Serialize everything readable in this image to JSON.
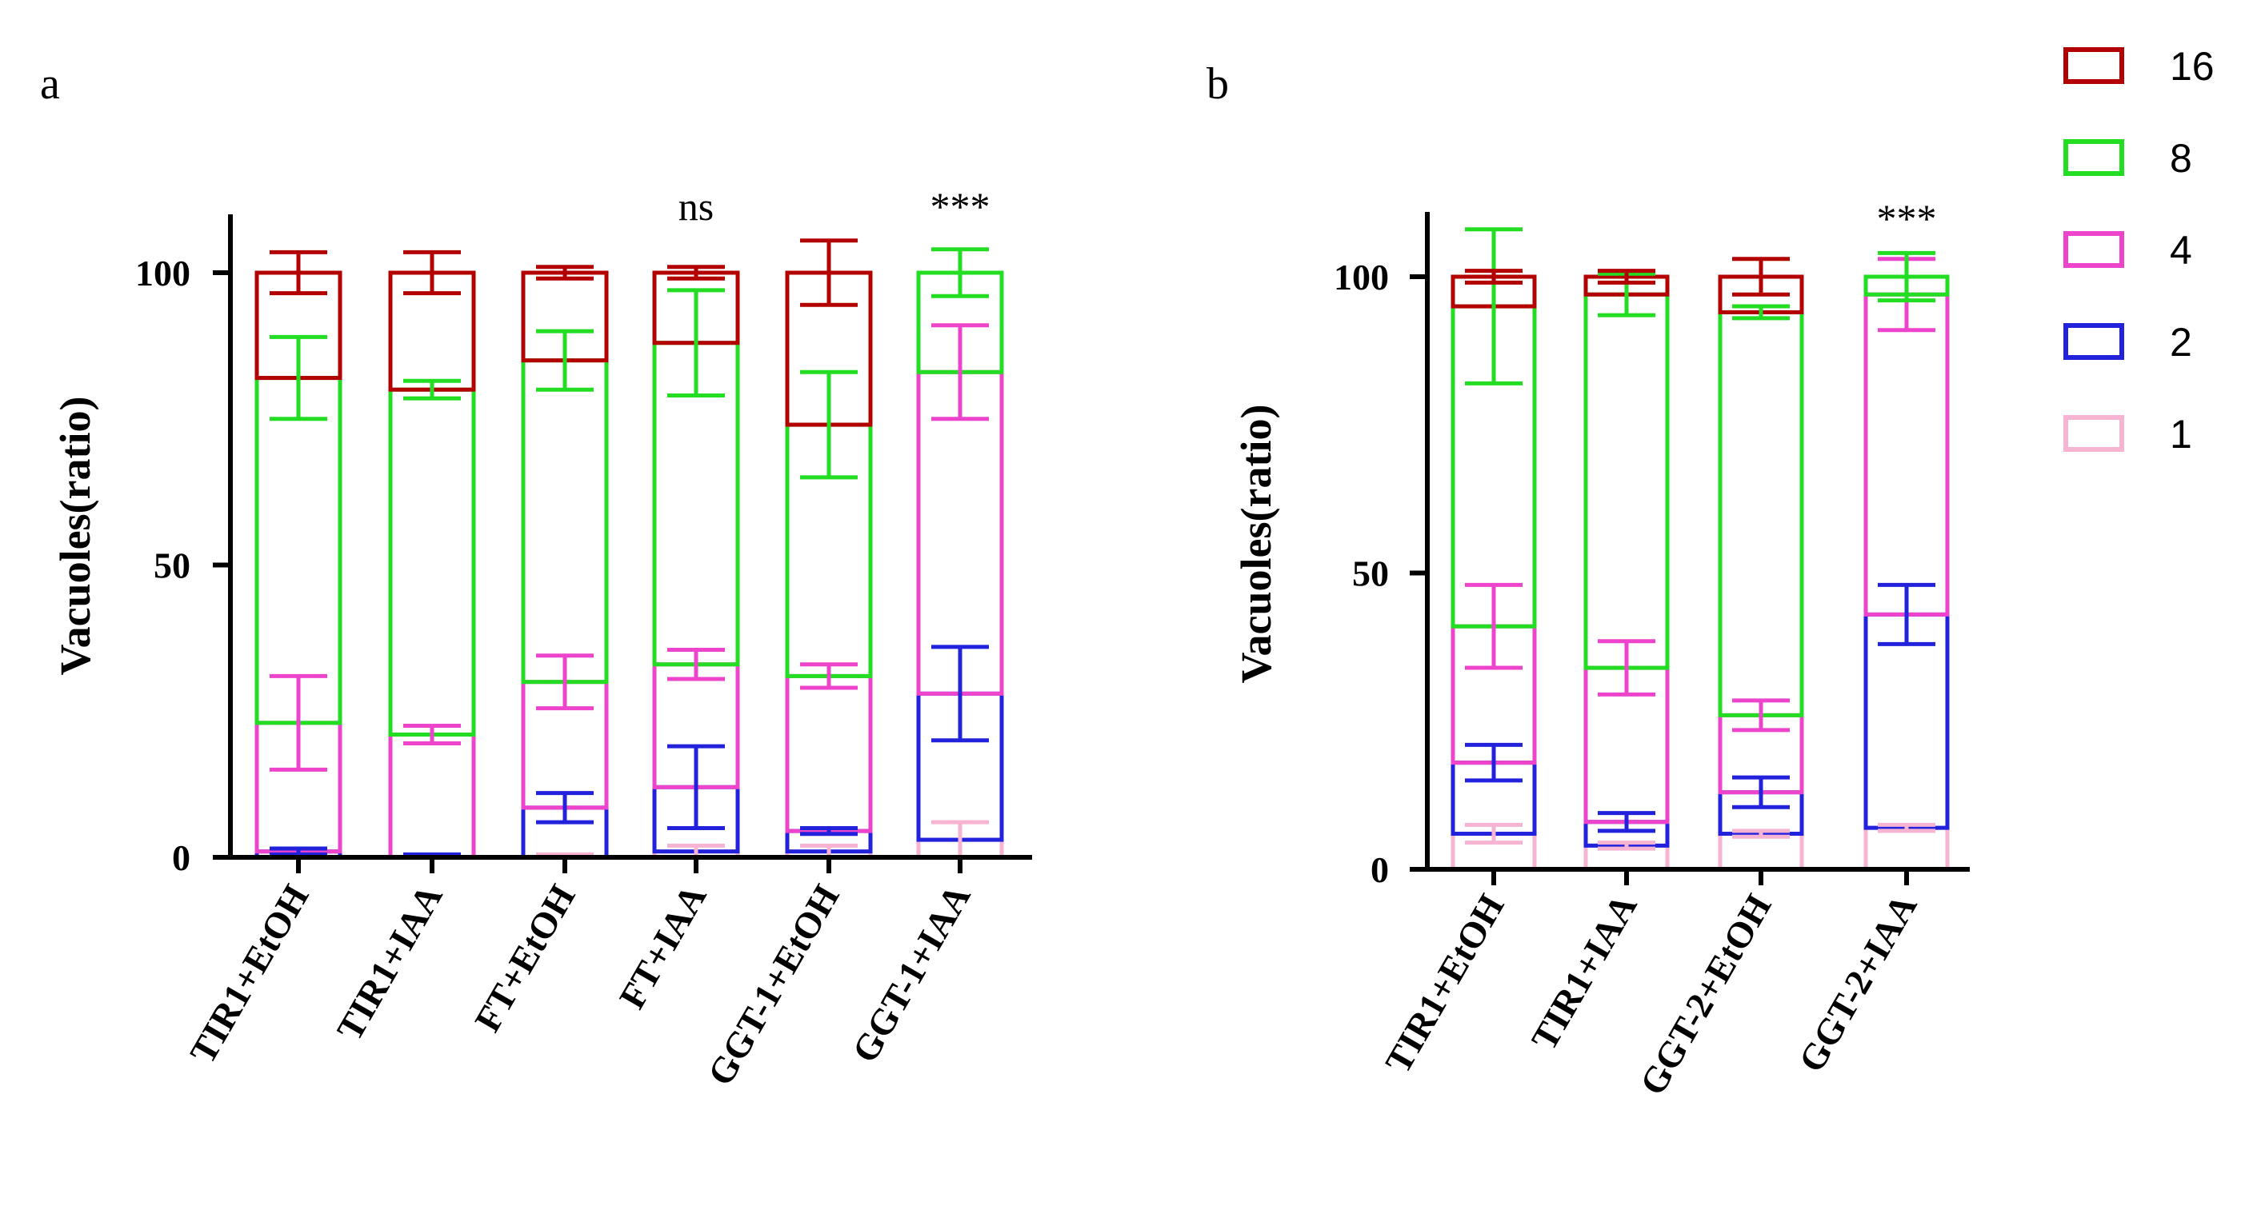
{
  "legend": {
    "items": [
      {
        "label": "16",
        "color": "#b30000"
      },
      {
        "label": "8",
        "color": "#22dd22"
      },
      {
        "label": "4",
        "color": "#ee44cc"
      },
      {
        "label": "2",
        "color": "#2222dd"
      },
      {
        "label": "1",
        "color": "#f7b3d2"
      }
    ]
  },
  "chart_data": [
    {
      "type": "bar",
      "stacked": true,
      "panel": "a",
      "title": "",
      "xlabel": "",
      "ylabel": "Vacuoles(ratio)",
      "ylim": [
        0,
        100
      ],
      "yticks": [
        0,
        50,
        100
      ],
      "categories": [
        "TIR1+EtOH",
        "TIR1+IAA",
        "FT+EtOH",
        "FT+IAA",
        "GGT-1+EtOH",
        "GGT-1+IAA"
      ],
      "annotations": [
        "",
        "",
        "",
        "ns",
        "",
        "***"
      ],
      "series": [
        {
          "name": "1",
          "color": "#f7b3d2",
          "top": [
            0,
            0,
            0,
            1,
            1,
            3
          ],
          "err": [
            0,
            0,
            0.5,
            1,
            1,
            3
          ]
        },
        {
          "name": "2",
          "color": "#2222dd",
          "top": [
            1,
            0,
            8.5,
            12,
            4.5,
            28
          ],
          "err": [
            0.5,
            0.5,
            2.5,
            7,
            0.5,
            8
          ]
        },
        {
          "name": "4",
          "color": "#ee44cc",
          "top": [
            23,
            21,
            30,
            33,
            31,
            83
          ],
          "err": [
            8,
            1.5,
            4.5,
            2.5,
            2,
            8
          ]
        },
        {
          "name": "8",
          "color": "#22dd22",
          "top": [
            82,
            80,
            85,
            88,
            74,
            100
          ],
          "err": [
            7,
            1.5,
            5,
            9,
            9,
            4
          ]
        },
        {
          "name": "16",
          "color": "#b30000",
          "top": [
            100,
            100,
            100,
            100,
            100,
            100
          ],
          "err": [
            3.5,
            3.5,
            1,
            1,
            5.5,
            0
          ]
        }
      ]
    },
    {
      "type": "bar",
      "stacked": true,
      "panel": "b",
      "title": "",
      "xlabel": "",
      "ylabel": "Vacuoles(ratio)",
      "ylim": [
        0,
        100
      ],
      "yticks": [
        0,
        50,
        100
      ],
      "categories": [
        "TIR1+EtOH",
        "TIR1+IAA",
        "GGT-2+EtOH",
        "GGT-2+IAA"
      ],
      "annotations": [
        "",
        "",
        "",
        "***"
      ],
      "series": [
        {
          "name": "1",
          "color": "#f7b3d2",
          "top": [
            6,
            4,
            6,
            7
          ],
          "err": [
            1.5,
            0.5,
            0.5,
            0.5
          ]
        },
        {
          "name": "2",
          "color": "#2222dd",
          "top": [
            18,
            8,
            13,
            43
          ],
          "err": [
            3,
            1.5,
            2.5,
            5
          ]
        },
        {
          "name": "4",
          "color": "#ee44cc",
          "top": [
            41,
            34,
            26,
            97
          ],
          "err": [
            7,
            4.5,
            2.5,
            6
          ]
        },
        {
          "name": "8",
          "color": "#22dd22",
          "top": [
            95,
            97,
            94,
            100
          ],
          "err": [
            13,
            3.5,
            1,
            4
          ]
        },
        {
          "name": "16",
          "color": "#b30000",
          "top": [
            100,
            100,
            100,
            100
          ],
          "err": [
            1,
            1,
            3,
            0
          ]
        }
      ]
    }
  ]
}
